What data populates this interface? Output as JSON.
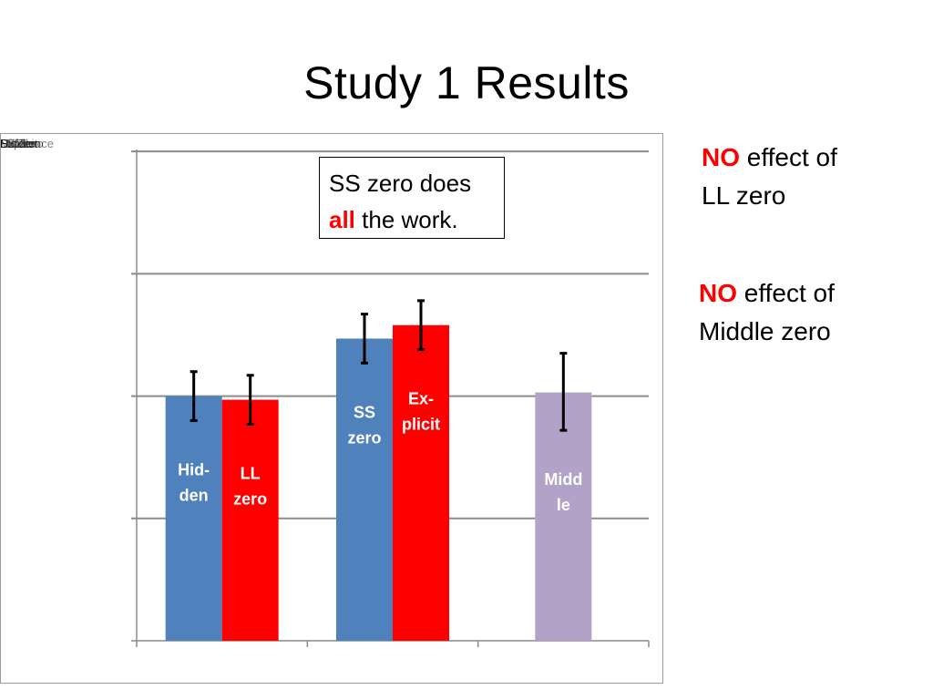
{
  "slide": {
    "title": "Study 1 Results"
  },
  "overlap_labels": [
    "Hidden",
    "LL Zero",
    "SS Zero",
    "Explicit",
    "Middle",
    "Difference"
  ],
  "callout": {
    "line1": "SS zero does",
    "highlight": "all",
    "rest": " the work."
  },
  "notes": [
    {
      "highlight": "NO",
      "rest": " effect of",
      "line2": "LL zero"
    },
    {
      "highlight": "NO",
      "rest": " effect of",
      "line2": "Middle zero"
    }
  ],
  "colors": {
    "blue": "#4F81BD",
    "red": "#FF0000",
    "purple": "#B2A2C7",
    "grid": "#8c8c8c",
    "white_label": "#FFFFFF",
    "highlight": "#FF0000"
  },
  "chart_data": {
    "type": "bar",
    "ylim": [
      0,
      4.15
    ],
    "gridlines": [
      1,
      2,
      3,
      4
    ],
    "grid": true,
    "groups": 3,
    "bars": [
      {
        "label": [
          "Hid-",
          "den"
        ],
        "value": 2.0,
        "err_low": 1.8,
        "err_high": 2.2,
        "group": 0,
        "color": "#4F81BD"
      },
      {
        "label": [
          "LL",
          "zero"
        ],
        "value": 1.97,
        "err_low": 1.77,
        "err_high": 2.17,
        "group": 0,
        "color": "#FF0000"
      },
      {
        "label": [
          "SS",
          "zero"
        ],
        "value": 2.47,
        "err_low": 2.27,
        "err_high": 2.67,
        "group": 1,
        "color": "#4F81BD"
      },
      {
        "label": [
          "Ex-",
          "plicit"
        ],
        "value": 2.58,
        "err_low": 2.38,
        "err_high": 2.78,
        "group": 1,
        "color": "#FF0000"
      },
      {
        "label": [
          "Midd",
          "le"
        ],
        "value": 2.03,
        "err_low": 1.72,
        "err_high": 2.35,
        "group": 2,
        "color": "#B2A2C7"
      }
    ]
  }
}
